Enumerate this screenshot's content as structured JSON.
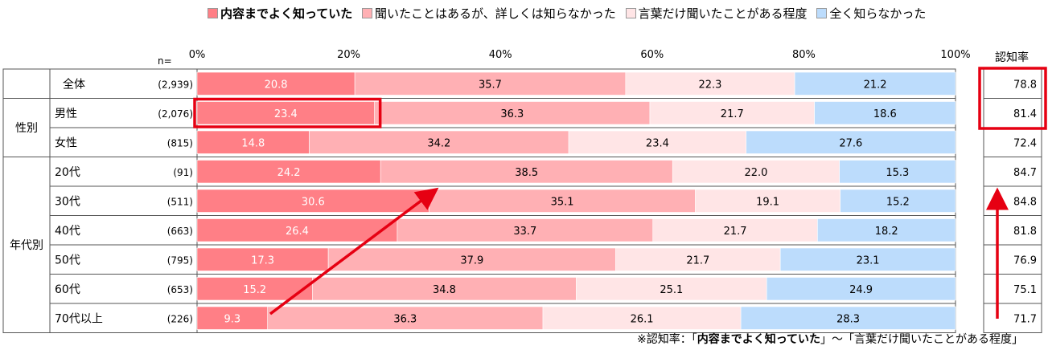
{
  "legend": [
    {
      "label": "内容までよく知っていた",
      "color": "#ff7f86"
    },
    {
      "label": "聞いたことはあるが、詳しくは知らなかった",
      "color": "#ffb0b4"
    },
    {
      "label": "言葉だけ聞いたことがある程度",
      "color": "#ffe5e6"
    },
    {
      "label": "全く知らなかった",
      "color": "#bcdcfc"
    }
  ],
  "n_label": "n=",
  "recognition_header": "認知率",
  "footnote": {
    "prefix": "※認知率：「",
    "bold": "内容までよく知っていた",
    "suffix": "」～「言葉だけ聞いたことがある程度」"
  },
  "chart_data": {
    "type": "bar",
    "orientation": "horizontal",
    "stacked": true,
    "percent_scale": true,
    "xlim": [
      0,
      100
    ],
    "x_ticks": [
      "0%",
      "20%",
      "40%",
      "60%",
      "80%",
      "100%"
    ],
    "categories": [
      "全体",
      "男性",
      "女性",
      "20代",
      "30代",
      "40代",
      "50代",
      "60代",
      "70代以上"
    ],
    "groups": [
      {
        "label": "",
        "rows": [
          0
        ]
      },
      {
        "label": "性別",
        "rows": [
          1,
          2
        ]
      },
      {
        "label": "年代別",
        "rows": [
          3,
          4,
          5,
          6,
          7,
          8
        ]
      }
    ],
    "n": [
      "(2,939)",
      "(2,076)",
      "(815)",
      "(91)",
      "(511)",
      "(663)",
      "(795)",
      "(653)",
      "(226)"
    ],
    "series": [
      {
        "name": "内容までよく知っていた",
        "values": [
          20.8,
          23.4,
          14.8,
          24.2,
          30.6,
          26.4,
          17.3,
          15.2,
          9.3
        ]
      },
      {
        "name": "聞いたことはあるが、詳しくは知らなかった",
        "values": [
          35.7,
          36.3,
          34.2,
          38.5,
          35.1,
          33.7,
          37.9,
          34.8,
          36.3
        ]
      },
      {
        "name": "言葉だけ聞いたことがある程度",
        "values": [
          22.3,
          21.7,
          23.4,
          22.0,
          19.1,
          21.7,
          21.7,
          25.1,
          26.1
        ]
      },
      {
        "name": "全く知らなかった",
        "values": [
          21.2,
          18.6,
          27.6,
          15.3,
          15.2,
          18.2,
          23.1,
          24.9,
          28.3
        ]
      }
    ],
    "recognition_rate": [
      78.8,
      81.4,
      72.4,
      84.7,
      84.8,
      81.8,
      76.9,
      75.1,
      71.7
    ],
    "highlights": [
      "男性 内容までよく知っていた",
      "認知率 全体・男性"
    ],
    "annotations": [
      "arrow 70代以上 → 30代 (内容までよく知っていた)",
      "arrow 認知率 70代以上 → 30代"
    ]
  }
}
